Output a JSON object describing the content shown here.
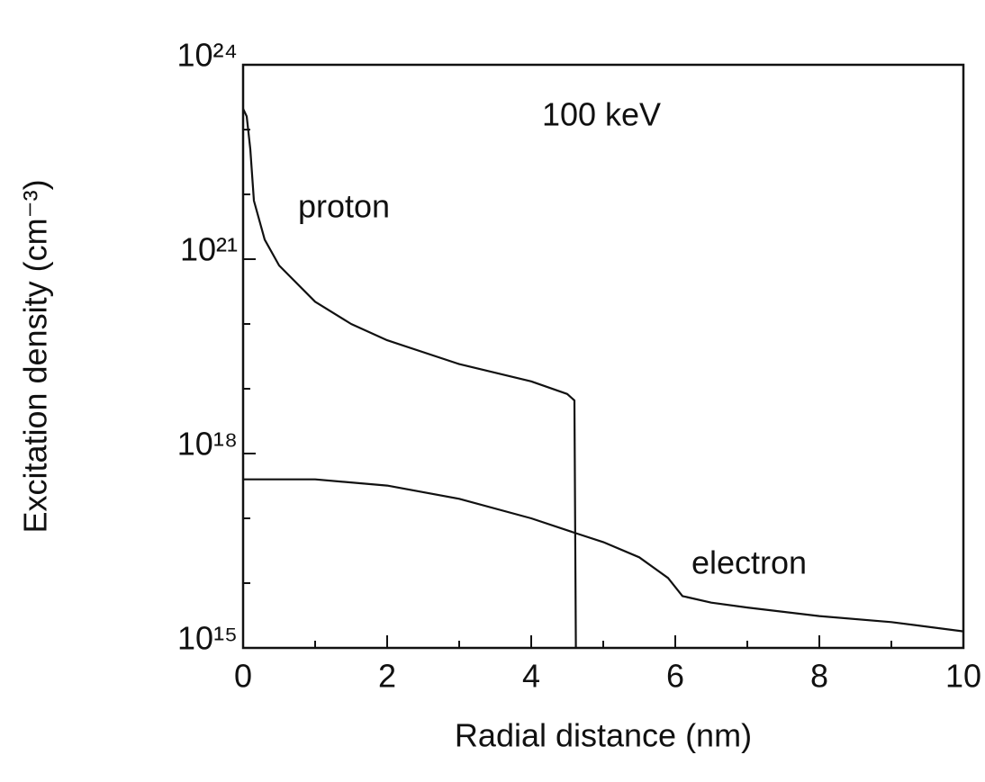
{
  "chart_data": {
    "type": "line",
    "x_label": "Radial distance (nm)",
    "y_label": "Excitation density (cm⁻³)",
    "annotations": [
      "100 keV"
    ],
    "log_y": true,
    "xlim": [
      0,
      10
    ],
    "xticks": [
      0,
      2,
      4,
      6,
      8,
      10
    ],
    "xminor_ticks": [
      1,
      3,
      5,
      7,
      9
    ],
    "ylim": [
      1000000000000000.0,
      1e+24
    ],
    "yticks": [
      {
        "value": 1000000000000000.0,
        "label": "10¹⁵"
      },
      {
        "value": 1e+18,
        "label": "10¹⁸"
      },
      {
        "value": 1e+21,
        "label": "10²¹"
      },
      {
        "value": 1e+24,
        "label": "10²⁴"
      }
    ],
    "yminor_ticks": [
      1e+16,
      1e+17,
      1e+19,
      1e+20,
      1e+22,
      1e+23
    ],
    "series": [
      {
        "name": "proton",
        "color": "#111111",
        "x": [
          0,
          0.05,
          0.1,
          0.15,
          0.3,
          0.5,
          1,
          1.5,
          2,
          3,
          4,
          4.5,
          4.6,
          4.62
        ],
        "values": [
          2.1e+23,
          1.6e+23,
          5e+22,
          8e+21,
          2e+21,
          8e+20,
          2.2e+20,
          1e+20,
          5.6e+19,
          2.4e+19,
          1.3e+19,
          8.3e+18,
          6.6e+18,
          1000000000000000.0
        ]
      },
      {
        "name": "electron",
        "color": "#111111",
        "x": [
          0,
          1,
          2,
          3,
          4,
          4.6,
          5,
          5.5,
          5.9,
          6.1,
          6.5,
          7,
          8,
          9,
          10
        ],
        "values": [
          4e+17,
          4e+17,
          3.2e+17,
          2e+17,
          1e+17,
          6e+16,
          4.3e+16,
          2.5e+16,
          1.2e+16,
          6300000000000000.0,
          5000000000000000.0,
          4200000000000000.0,
          3100000000000000.0,
          2500000000000000.0,
          1800000000000000.0
        ]
      }
    ]
  }
}
